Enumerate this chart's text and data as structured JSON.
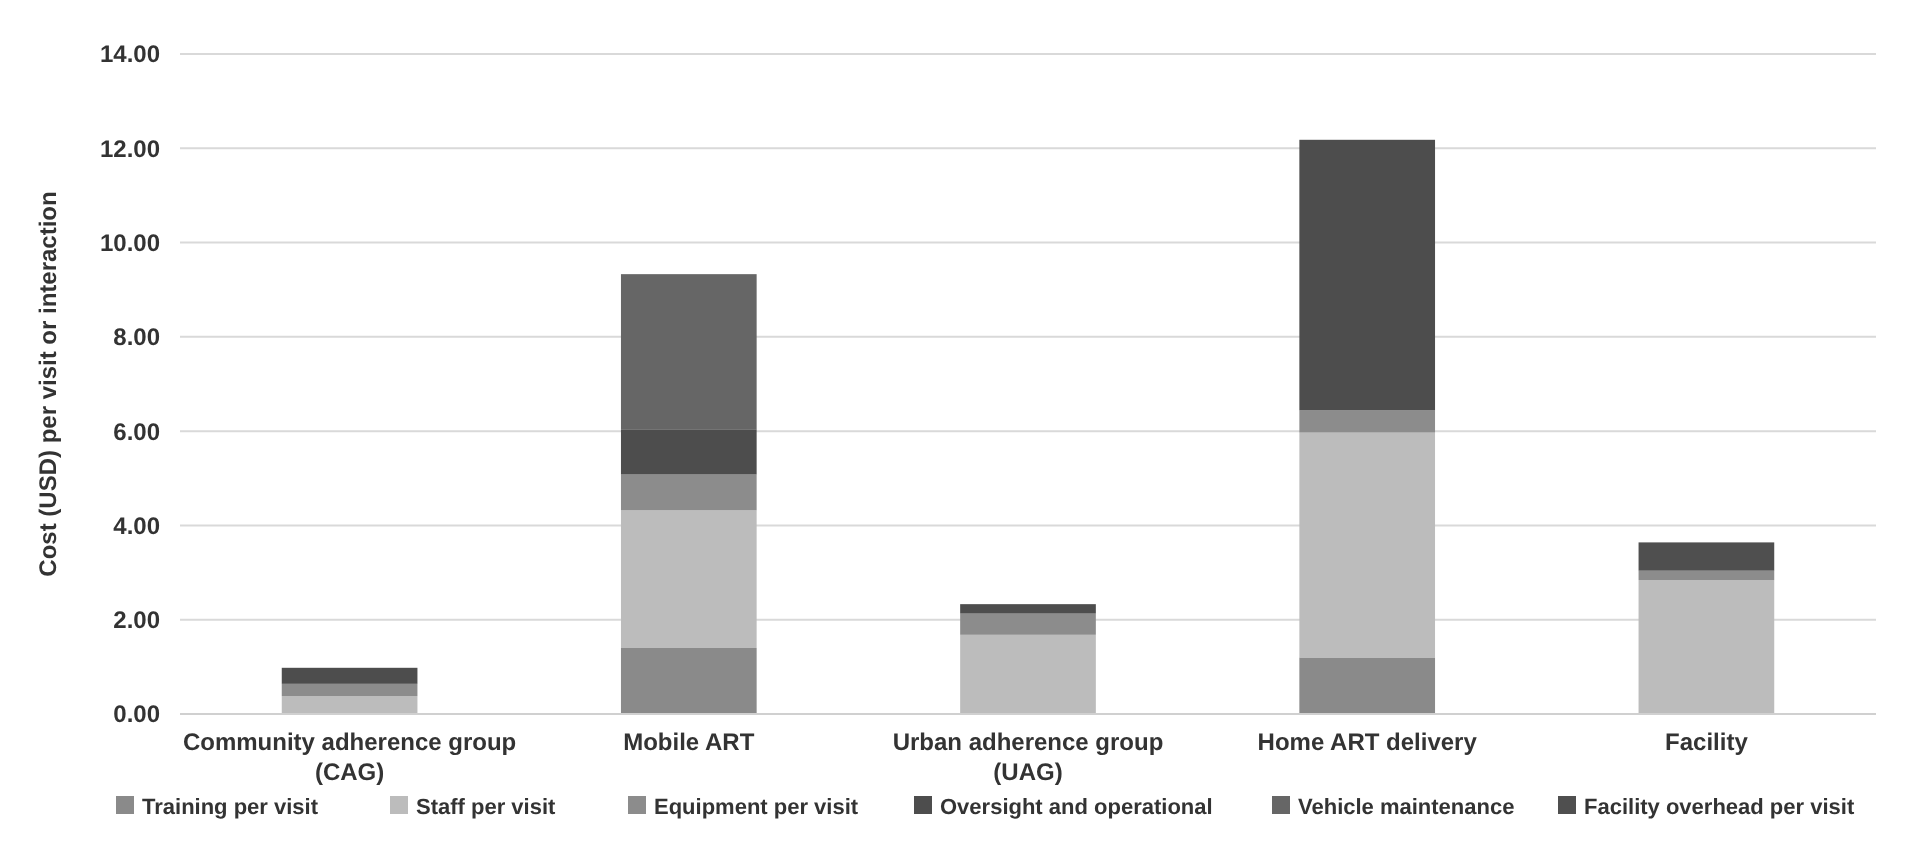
{
  "chart_data": {
    "type": "bar",
    "stacked": true,
    "ylabel": "Cost (USD) per visit or interaction",
    "categories": [
      "Community adherence group (CAG)",
      "Mobile ART",
      "Urban adherence group (UAG)",
      "Home ART delivery",
      "Facility"
    ],
    "series": [
      {
        "name": "Training per visit",
        "color": "#8a8a8a",
        "values": [
          null,
          1.4,
          null,
          1.2,
          null
        ]
      },
      {
        "name": "Staff per visit",
        "color": "#bcbcbc",
        "values": [
          0.38,
          2.92,
          1.68,
          4.77,
          2.84
        ]
      },
      {
        "name": "Equipment per visit",
        "color": "#8c8c8c",
        "values": [
          0.26,
          0.76,
          0.45,
          0.47,
          0.2
        ]
      },
      {
        "name": "Oversight and operational",
        "color": "#4d4d4d",
        "values": [
          0.34,
          0.96,
          0.2,
          5.74,
          null
        ]
      },
      {
        "name": "Vehicle maintenance",
        "color": "#666666",
        "values": [
          null,
          3.29,
          null,
          null,
          null
        ]
      },
      {
        "name": "Facility overhead per visit",
        "color": "#4f4f4f",
        "values": [
          null,
          null,
          null,
          null,
          0.6
        ]
      }
    ],
    "ylim": [
      0,
      14
    ],
    "yticks": [
      {
        "value": 0,
        "label": "0.00"
      },
      {
        "value": 2,
        "label": "2.00"
      },
      {
        "value": 4,
        "label": "4.00"
      },
      {
        "value": 6,
        "label": "6.00"
      },
      {
        "value": 8,
        "label": "8.00"
      },
      {
        "value": 10,
        "label": "10.00"
      },
      {
        "value": 12,
        "label": "12.00"
      },
      {
        "value": 14,
        "label": "14.00"
      }
    ],
    "grid": "y",
    "legend": "bottom"
  }
}
